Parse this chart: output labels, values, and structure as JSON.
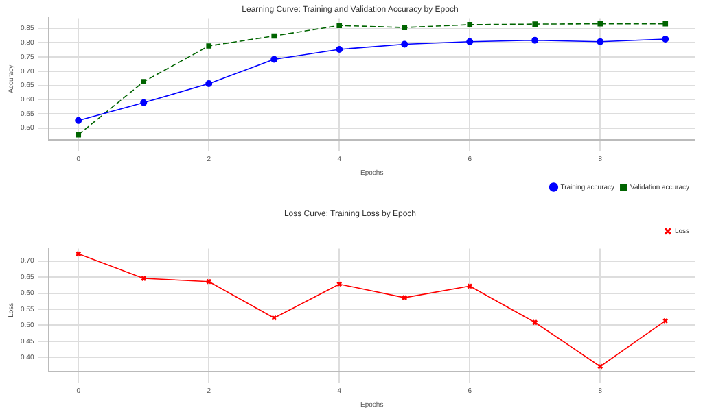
{
  "chart_data": [
    {
      "type": "line",
      "title": "Learning Curve: Training and Validation Accuracy by Epoch",
      "xlabel": "Epochs",
      "ylabel": "Accuracy",
      "x": [
        0,
        1,
        2,
        3,
        4,
        5,
        6,
        7,
        8,
        9
      ],
      "series": [
        {
          "name": "Training accuracy",
          "color": "#0000ff",
          "marker": "circle",
          "line_style": "solid",
          "values": [
            0.526,
            0.589,
            0.656,
            0.742,
            0.777,
            0.795,
            0.804,
            0.809,
            0.804,
            0.813
          ]
        },
        {
          "name": "Validation accuracy",
          "color": "#006400",
          "marker": "square",
          "line_style": "dashed",
          "values": [
            0.476,
            0.663,
            0.789,
            0.824,
            0.861,
            0.854,
            0.864,
            0.866,
            0.867,
            0.867
          ]
        }
      ],
      "xlim": [
        -0.45,
        9.45
      ],
      "xticks": [
        0,
        2,
        4,
        6,
        8
      ],
      "ylim": [
        0.458,
        0.887
      ],
      "yticks": [
        {
          "value": 0.5,
          "label": "0.50"
        },
        0.55,
        {
          "value": 0.6,
          "label": "0.60"
        },
        0.65,
        {
          "value": 0.7,
          "label": "0.70"
        },
        0.75,
        {
          "value": 0.8,
          "label": "0.80"
        },
        0.85
      ],
      "grid": true,
      "legend": "bottom right"
    },
    {
      "type": "line",
      "title": "Loss Curve: Training Loss by Epoch",
      "xlabel": "Epochs",
      "ylabel": "Loss",
      "x": [
        0,
        1,
        2,
        3,
        4,
        5,
        6,
        7,
        8,
        9
      ],
      "series": [
        {
          "name": "Loss",
          "color": "#ff0000",
          "marker": "cross",
          "line_style": "solid",
          "values": [
            0.722,
            0.646,
            0.636,
            0.523,
            0.628,
            0.586,
            0.622,
            0.509,
            0.372,
            0.514
          ]
        }
      ],
      "xlim": [
        -0.45,
        9.45
      ],
      "xticks": [
        0,
        2,
        4,
        6,
        8
      ],
      "ylim": [
        0.356,
        0.739
      ],
      "yticks": [
        {
          "value": 0.4,
          "label": "0.40"
        },
        0.45,
        {
          "value": 0.5,
          "label": "0.50"
        },
        0.55,
        {
          "value": 0.6,
          "label": "0.60"
        },
        0.65,
        {
          "value": 0.7,
          "label": "0.70"
        }
      ],
      "grid": true,
      "legend": "top right"
    }
  ]
}
